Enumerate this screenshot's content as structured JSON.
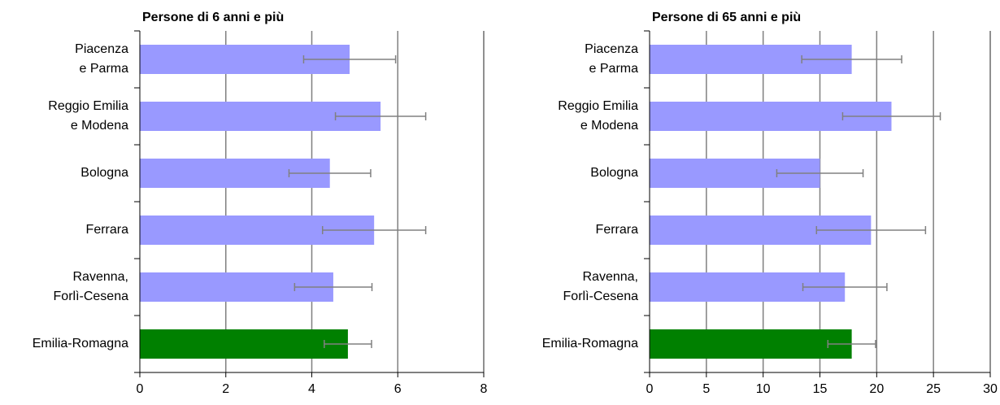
{
  "chart_data": [
    {
      "type": "bar",
      "orientation": "horizontal",
      "title": "Persone di 6 anni e più",
      "categories": [
        [
          "Piacenza",
          "e Parma"
        ],
        [
          "Reggio Emilia",
          "e Modena"
        ],
        [
          "Bologna"
        ],
        [
          "Ferrara"
        ],
        [
          "Ravenna,",
          "Forlì-Cesena"
        ],
        [
          "Emilia-Romagna"
        ]
      ],
      "values": [
        4.88,
        5.6,
        4.42,
        5.45,
        4.5,
        4.84
      ],
      "errors": [
        1.07,
        1.05,
        0.95,
        1.2,
        0.9,
        0.55
      ],
      "colors": [
        "#9999ff",
        "#9999ff",
        "#9999ff",
        "#9999ff",
        "#9999ff",
        "#008000"
      ],
      "xlim": [
        0,
        8
      ],
      "xticks": [
        0,
        2,
        4,
        6,
        8
      ],
      "grid": true
    },
    {
      "type": "bar",
      "orientation": "horizontal",
      "title": "Persone di 65 anni e più",
      "categories": [
        [
          "Piacenza",
          "e Parma"
        ],
        [
          "Reggio Emilia",
          "e Modena"
        ],
        [
          "Bologna"
        ],
        [
          "Ferrara"
        ],
        [
          "Ravenna,",
          "Forlì-Cesena"
        ],
        [
          "Emilia-Romagna"
        ]
      ],
      "values": [
        17.8,
        21.3,
        15.0,
        19.5,
        17.2,
        17.8
      ],
      "errors": [
        4.4,
        4.3,
        3.8,
        4.8,
        3.7,
        2.1
      ],
      "colors": [
        "#9999ff",
        "#9999ff",
        "#9999ff",
        "#9999ff",
        "#9999ff",
        "#008000"
      ],
      "xlim": [
        0,
        30
      ],
      "xticks": [
        0,
        5,
        10,
        15,
        20,
        25,
        30
      ],
      "grid": true
    }
  ]
}
